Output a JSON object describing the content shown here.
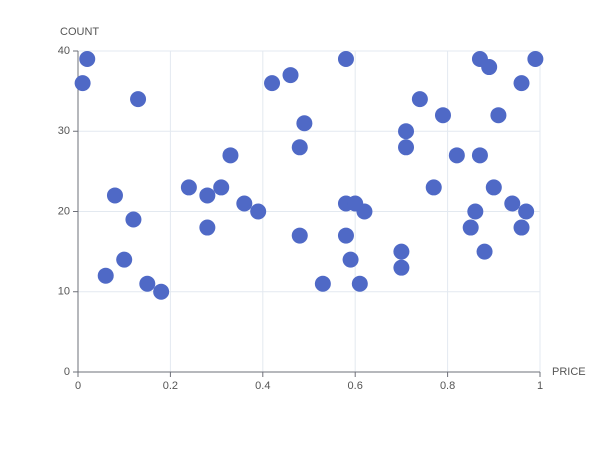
{
  "chart_data": {
    "type": "scatter",
    "x_label": "PRICE",
    "y_label": "COUNT",
    "x": [
      0.01,
      0.02,
      0.13,
      0.08,
      0.12,
      0.06,
      0.1,
      0.15,
      0.18,
      0.24,
      0.28,
      0.31,
      0.28,
      0.33,
      0.36,
      0.39,
      0.42,
      0.46,
      0.49,
      0.48,
      0.48,
      0.53,
      0.58,
      0.58,
      0.6,
      0.62,
      0.58,
      0.59,
      0.61,
      0.7,
      0.7,
      0.71,
      0.71,
      0.74,
      0.77,
      0.79,
      0.82,
      0.85,
      0.86,
      0.87,
      0.89,
      0.87,
      0.88,
      0.9,
      0.91,
      0.94,
      0.96,
      0.96,
      0.97,
      0.99
    ],
    "values": [
      36,
      39,
      34,
      22,
      19,
      12,
      14,
      11,
      10,
      23,
      22,
      23,
      18,
      27,
      21,
      20,
      36,
      37,
      31,
      28,
      17,
      11,
      39,
      21,
      21,
      20,
      17,
      14,
      11,
      15,
      13,
      30,
      28,
      34,
      23,
      32,
      27,
      18,
      20,
      39,
      38,
      27,
      15,
      23,
      32,
      21,
      36,
      18,
      20,
      39
    ],
    "color": "#4f69c6",
    "xlim": [
      0,
      1
    ],
    "xticks": [
      0,
      0.2,
      0.4,
      0.6,
      0.8,
      1
    ],
    "ylim": [
      0,
      40
    ],
    "yticks": [
      0,
      10,
      20,
      30,
      40
    ],
    "grid": true
  }
}
